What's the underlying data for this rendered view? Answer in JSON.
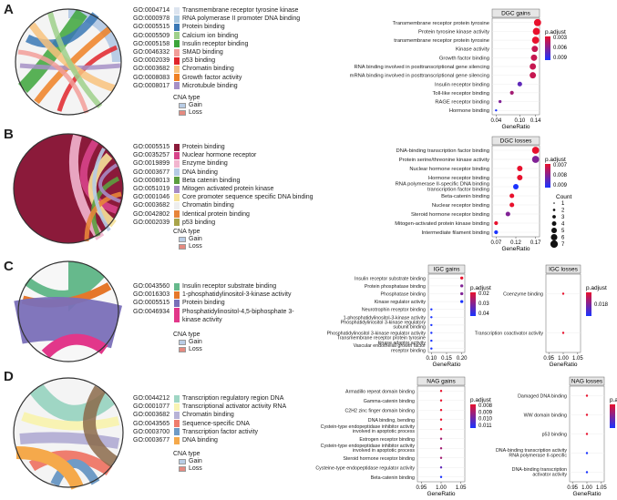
{
  "colors": {
    "gain": "#b9cde6",
    "loss": "#e58a80",
    "padj_high": "#e8112d",
    "padj_low": "#1a33ff"
  },
  "panels": [
    {
      "letter": "A",
      "go_terms": [
        {
          "id": "GO:0004714",
          "name": "Transmembrane receptor tyrosine kinase",
          "color": "#dce4ef"
        },
        {
          "id": "GO:0000978",
          "name": "RNA polymerase II promoter DNA binding",
          "color": "#a7c6df"
        },
        {
          "id": "GO:0005515",
          "name": "Protein binding",
          "color": "#3a78b5"
        },
        {
          "id": "GO:0005509",
          "name": "Calcium ion binding",
          "color": "#9fd08b"
        },
        {
          "id": "GO:0005158",
          "name": "Insulin receptor binding",
          "color": "#3ca53a"
        },
        {
          "id": "GO:0046332",
          "name": "SMAD binding",
          "color": "#f29e99"
        },
        {
          "id": "GO:0002039",
          "name": "p53 binding",
          "color": "#e1252a"
        },
        {
          "id": "GO:0003682",
          "name": "Chromatin binding",
          "color": "#f8c27d"
        },
        {
          "id": "GO:0008083",
          "name": "Growth factor activity",
          "color": "#ef8023"
        },
        {
          "id": "GO:0008017",
          "name": "Microtubule binding",
          "color": "#a690c6"
        }
      ],
      "cna_title": "CNA type",
      "cna_items": [
        "Gain",
        "Loss"
      ]
    },
    {
      "letter": "B",
      "go_terms": [
        {
          "id": "GO:0005515",
          "name": "Protein binding",
          "color": "#8b1a3a"
        },
        {
          "id": "GO:0035257",
          "name": "Nuclear hormone receptor",
          "color": "#d7448b"
        },
        {
          "id": "GO:0019899",
          "name": "Enzyme binding",
          "color": "#f2b5cf"
        },
        {
          "id": "GO:0003677",
          "name": "DNA binding",
          "color": "#b6cbe5"
        },
        {
          "id": "GO:0008013",
          "name": "Beta catenin binding",
          "color": "#5c9e3f"
        },
        {
          "id": "GO:0051019",
          "name": "Mitogen activated protein kinase",
          "color": "#a78bc4"
        },
        {
          "id": "GO:0001046",
          "name": "Core promoter sequence specific DNA binding",
          "color": "#f6e29a"
        },
        {
          "id": "GO:0003682",
          "name": "Chromatin binding",
          "color": "#eeeeee"
        },
        {
          "id": "GO:0042802",
          "name": "Identical protein binding",
          "color": "#e7853a"
        },
        {
          "id": "GO:0002039",
          "name": "p53 binding",
          "color": "#a9a44a"
        }
      ],
      "cna_title": "CNA type",
      "cna_items": [
        "Gain",
        "Loss"
      ]
    },
    {
      "letter": "C",
      "go_terms": [
        {
          "id": "GO:0043560",
          "name": "Insulin receptor substrate binding",
          "color": "#66b98c"
        },
        {
          "id": "GO:0016303",
          "name": "1-phosphatidylinositol-3-kinase activity",
          "color": "#e5772a"
        },
        {
          "id": "GO:0005515",
          "name": "Protein binding",
          "color": "#7a6fb8"
        },
        {
          "id": "GO:0046934",
          "name": "Phosphatidylinositol-4,5-biphosphate 3-kinase activity",
          "color": "#e2378a"
        }
      ],
      "cna_title": "CNA type",
      "cna_items": [
        "Gain",
        "Loss"
      ]
    },
    {
      "letter": "D",
      "go_terms": [
        {
          "id": "GO:0044212",
          "name": "Transcription regulatory region DNA",
          "color": "#9fd6c4"
        },
        {
          "id": "GO:0001077",
          "name": "Transcriptional activator activity RNA",
          "color": "#f8f3b3"
        },
        {
          "id": "GO:0003682",
          "name": "Chromatin binding",
          "color": "#b7b2d6"
        },
        {
          "id": "GO:0043565",
          "name": "Sequence-specific DNA",
          "color": "#ef7d6e"
        },
        {
          "id": "GO:0003700",
          "name": "Transcription factor activity",
          "color": "#6f9bc6"
        },
        {
          "id": "GO:0003677",
          "name": "DNA binding",
          "color": "#f5a94b"
        }
      ],
      "cna_title": "CNA type",
      "cna_items": [
        "Gain",
        "Loss"
      ]
    }
  ],
  "chart_data": [
    {
      "type": "scatter",
      "title": "DGC gains",
      "xlabel": "GeneRatio",
      "xticks": [
        "0.04",
        "0.10",
        "0.14"
      ],
      "xlim": [
        0.03,
        0.15
      ],
      "categories": [
        "Transmembrane receptor protein tyrosine kinase activity",
        "Protein tyrosine kinase activity",
        "transmembrane receptor protein tyrosine",
        "Kinase activity",
        "Growth factor binding",
        "RNA binding involved in posttranscriptional gene silencing",
        "mRNA binding involved in posttranscriptional gene silencing",
        "Insulin receptor binding",
        "Toll-like receptor binding",
        "RAGE receptor binding",
        "Hormone binding"
      ],
      "display_labels": [
        "Transmembrane receptor protein tyrosine",
        "Protein tyrosine kinase activity",
        "transmembrane receptor protein tyrosine",
        "Kinase activity",
        "Growth factor binding",
        "RNA binding involved in posttranscriptional gene silencing",
        "mRNA binding involved in posttranscriptional gene silencing",
        "Insulin receptor binding",
        "Toll-like receptor binding",
        "RAGE receptor binding",
        "Hormone binding"
      ],
      "x": [
        0.145,
        0.142,
        0.14,
        0.138,
        0.136,
        0.133,
        0.133,
        0.1,
        0.08,
        0.05,
        0.04
      ],
      "count": [
        7,
        7,
        7,
        6,
        6,
        6,
        6,
        4,
        3,
        2,
        1
      ],
      "padj": [
        0.003,
        0.003,
        0.003,
        0.004,
        0.004,
        0.004,
        0.004,
        0.007,
        0.005,
        0.006,
        0.009
      ],
      "colorbar_label": "p.adjust",
      "colorbar_ticks": [
        "0.003",
        "0.006",
        "0.009"
      ]
    },
    {
      "type": "scatter",
      "title": "DGC losses",
      "xlabel": "GeneRatio",
      "xticks": [
        "0.07",
        "0.12",
        "0.17"
      ],
      "xlim": [
        0.06,
        0.18
      ],
      "categories": [
        "DNA-binding transcription factor binding",
        "Protein serine/threonine kinase activity",
        "Nuclear hormone receptor binding",
        "Hormone receptor binding",
        "RNA polymerase II-specific DNA binding transcription factor binding",
        "Beta-catenin binding",
        "Nuclear receptor binding",
        "Steroid hormone receptor binding",
        "Mitogen-activated protein kinase binding",
        "Intermediate filament binding"
      ],
      "display_labels": [
        "DNA-binding transcription factor binding",
        "Protein serine/threonine kinase activity",
        "Nuclear hormone receptor binding",
        "Hormone receptor binding",
        "RNA polymerase II-specific DNA binding",
        "Beta-catenin binding",
        "Nuclear receptor binding",
        "Steroid hormone receptor binding",
        "Mitogen-activated protein kinase binding",
        "Intermediate filament binding"
      ],
      "second_line": [
        "",
        "",
        "",
        "",
        "transcription factor binding",
        "",
        "",
        "",
        "",
        ""
      ],
      "x": [
        0.17,
        0.17,
        0.13,
        0.13,
        0.12,
        0.11,
        0.11,
        0.1,
        0.07,
        0.07
      ],
      "count": [
        7,
        7,
        5,
        5,
        5,
        4,
        4,
        4,
        3,
        3
      ],
      "padj": [
        0.007,
        0.008,
        0.007,
        0.007,
        0.009,
        0.007,
        0.007,
        0.008,
        0.007,
        0.009
      ],
      "colorbar_label": "p.adjust",
      "colorbar_ticks": [
        "0.007",
        "0.008",
        "0.009"
      ],
      "size_legend_title": "Count",
      "size_legend": [
        "1",
        "2",
        "3",
        "4",
        "5",
        "6",
        "7"
      ]
    },
    {
      "type": "scatter",
      "title": "IGC gains",
      "xlabel": "GeneRatio",
      "xticks": [
        "0.10",
        "0.15",
        "0.20"
      ],
      "xlim": [
        0.09,
        0.21
      ],
      "categories": [
        "Insulin receptor substrate binding",
        "Protein phosphatase binding",
        "Phosphatase binding",
        "Kinase regulator activity",
        "Neurotrophin receptor binding",
        "1-phosphatidylinositol-3-kinase activity",
        "Phosphatidylinositol 3-kinase regulatory subunit binding",
        "Phosphatidylinositol 3-kinase regulator activity",
        "Transmembrane receptor protein tyrosine kinase adaptor activity",
        "Vascular endothelial growth factor receptor binding"
      ],
      "display_labels": [
        "Insulin receptor substrate binding",
        "Protein phosphatase binding",
        "Phosphatase binding",
        "Kinase regulator activity",
        "Neurotrophin receptor binding",
        "1-phosphatidylinositol-3-kinase activity",
        "Phosphatidylinositol 3-kinase regulatory",
        "Phosphatidylinositol 3-kinase regulator activity",
        "Transmembrane receptor protein tyrosine",
        "Vascular endothelial growth factor"
      ],
      "second_line": [
        "",
        "",
        "",
        "",
        "",
        "",
        "subunit binding",
        "",
        "kinase adaptor activity",
        "receptor binding"
      ],
      "x": [
        0.2,
        0.2,
        0.2,
        0.2,
        0.1,
        0.1,
        0.1,
        0.1,
        0.1,
        0.1
      ],
      "count": [
        2,
        2,
        2,
        2,
        1,
        1,
        1,
        1,
        1,
        1
      ],
      "padj": [
        0.02,
        0.03,
        0.03,
        0.04,
        0.04,
        0.04,
        0.04,
        0.04,
        0.04,
        0.04
      ],
      "colorbar_label": "p.adjust",
      "colorbar_ticks": [
        "0.02",
        "0.03",
        "0.04"
      ]
    },
    {
      "type": "scatter",
      "title": "IGC losses",
      "xlabel": "GeneRatio",
      "xticks": [
        "0.95",
        "1.00",
        "1.05"
      ],
      "xlim": [
        0.94,
        1.06
      ],
      "categories": [
        "Coenzyme binding",
        "Transcription coactivator activity"
      ],
      "display_labels": [
        "Coenzyme binding",
        "Transcription coactivator activity"
      ],
      "x": [
        1.0,
        1.0
      ],
      "count": [
        1,
        1
      ],
      "padj": [
        0.018,
        0.018
      ],
      "colorbar_label": "p.adjust",
      "colorbar_ticks": [
        "0.018"
      ]
    },
    {
      "type": "scatter",
      "title": "NAG gains",
      "xlabel": "GeneRatio",
      "xticks": [
        "0.95",
        "1.00",
        "1.05"
      ],
      "xlim": [
        0.94,
        1.06
      ],
      "categories": [
        "Armadillo repeat domain binding",
        "Gamma-catenin binding",
        "C2H2 zinc finger domain binding",
        "DNA binding, bending",
        "Cystein-type endopeptidase inhibitor activity involved in apoptotic process",
        "Estrogen receptor binding",
        "Cystein-type endopeptidase inhibitor activity involved in apoptotic process",
        "Steroid hormone receptor binding",
        "Cysteine-type endopeptidase regulator activity",
        "Beta-catenin binding"
      ],
      "display_labels": [
        "Armadillo repeat domain binding",
        "Gamma-catenin binding",
        "C2H2 zinc finger domain binding",
        "DNA binding, bending",
        "Cystein-type endopeptidase inhibitor activity",
        "Estrogen receptor binding",
        "Cystein-type endopeptidase inhibitor activity",
        "Steroid hormone receptor binding",
        "Cysteine-type endopeptidase regulator activity",
        "Beta-catenin binding"
      ],
      "second_line": [
        "",
        "",
        "",
        "",
        "involved in apoptotic process",
        "",
        "involved in apoptotic process",
        "",
        "",
        ""
      ],
      "x": [
        1,
        1,
        1,
        1,
        1,
        1,
        1,
        1,
        1,
        1
      ],
      "count": [
        1,
        1,
        1,
        1,
        1,
        1,
        1,
        1,
        1,
        1
      ],
      "padj": [
        0.008,
        0.008,
        0.008,
        0.008,
        0.008,
        0.009,
        0.009,
        0.009,
        0.01,
        0.011
      ],
      "colorbar_label": "p.adjust",
      "colorbar_ticks": [
        "0.008",
        "0.009",
        "0.010",
        "0.011"
      ]
    },
    {
      "type": "scatter",
      "title": "NAG losses",
      "xlabel": "GeneRatio",
      "xticks": [
        "0.95",
        "1.00",
        "1.05"
      ],
      "xlim": [
        0.94,
        1.06
      ],
      "categories": [
        "Damaged DNA binding",
        "WW domain binding",
        "p53 binding",
        "DNA-binding transcription activity RNA polymerase II-specific",
        "DNA-binding transcription activator activity"
      ],
      "display_labels": [
        "Damaged DNA binding",
        "WW domain binding",
        "p53 binding",
        "DNA-binding transcription activity",
        "DNA-binding transcription"
      ],
      "second_line": [
        "",
        "",
        "",
        "RNA polymerase II-specific",
        "activator activity"
      ],
      "x": [
        1,
        1,
        1,
        1,
        1
      ],
      "count": [
        1,
        1,
        1,
        1,
        1
      ],
      "padj": [
        0.01,
        0.01,
        0.01,
        0.02,
        0.02
      ],
      "colorbar_label": "p.adjust",
      "colorbar_ticks": [
        "0.010",
        "0.015",
        "0.020"
      ]
    }
  ]
}
